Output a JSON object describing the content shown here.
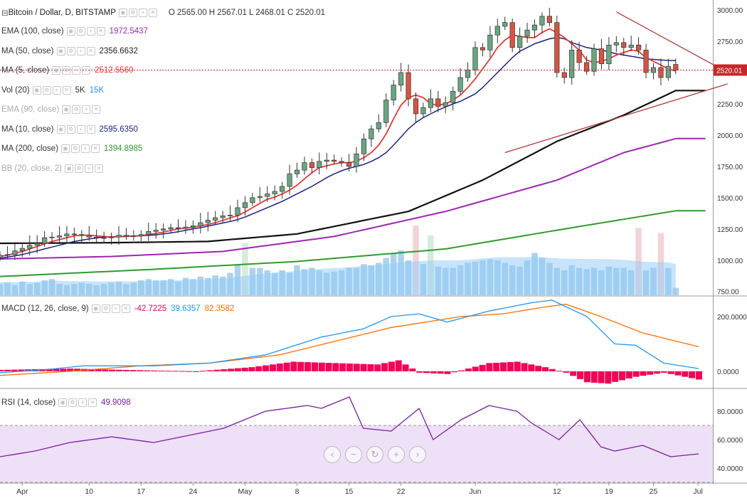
{
  "header": {
    "symbol": "Bitcoin / Dollar, D, BITSTAMP",
    "o_label": "O",
    "o": "2565.00",
    "h_label": "H",
    "h": "2567.01",
    "l_label": "L",
    "l": "2468.01",
    "c_label": "C",
    "c": "2520.01"
  },
  "indicators": [
    {
      "label": "EMA (100, close)",
      "values": [
        "1972.5437"
      ],
      "colors": [
        "#9c27b0"
      ],
      "dim": false
    },
    {
      "label": "MA (50, close)",
      "values": [
        "2356.6632"
      ],
      "colors": [
        "#222222"
      ],
      "dim": false
    },
    {
      "label": "MA (5, close)",
      "values": [
        "2512.5560"
      ],
      "colors": [
        "#e53935"
      ],
      "dim": false
    },
    {
      "label": "Vol (20)",
      "values": [
        "5K",
        "15K"
      ],
      "colors": [
        "#333333",
        "#2196f3"
      ],
      "dim": false
    },
    {
      "label": "EMA (90, close)",
      "values": [],
      "colors": [],
      "dim": true
    },
    {
      "label": "MA (10, close)",
      "values": [
        "2595.6350"
      ],
      "colors": [
        "#1a237e"
      ],
      "dim": false
    },
    {
      "label": "MA (200, close)",
      "values": [
        "1394.8985"
      ],
      "colors": [
        "#2e9b2e"
      ],
      "dim": false
    },
    {
      "label": "BB (20, close, 2)",
      "values": [],
      "colors": [],
      "dim": true
    }
  ],
  "macd_legend": {
    "label": "MACD (12, 26, close, 9)",
    "hist": "-42.7225",
    "macd": "39.6357",
    "signal": "82.3582"
  },
  "rsi_legend": {
    "label": "RSI (14, close)",
    "value": "49.9098"
  },
  "nav_icons": [
    "back-icon",
    "zoom-out-icon",
    "reset-icon",
    "zoom-in-icon",
    "forward-icon"
  ],
  "nav_glyphs": [
    "‹",
    "−",
    "↻",
    "+",
    "›"
  ],
  "colors": {
    "up": "#6ba583",
    "down": "#d75442",
    "ma5": "#e53935",
    "ma10": "#1a237e",
    "ma50": "#111111",
    "ema100": "#9c27b0",
    "ma200": "#2e9b2e",
    "macd": "#2196f3",
    "signal": "#ff6d00",
    "hist": "#f50057",
    "rsi": "#7b1fa2",
    "rsi_band": "#ede0f7",
    "trend": "#b03a3a",
    "price_line": "#c62828"
  },
  "chart_data": [
    {
      "type": "candlestick",
      "title": "Bitcoin / Dollar, D, BITSTAMP",
      "ylim": [
        720,
        3080
      ],
      "y_ticks": [
        "3000.00",
        "2750.00",
        "2500.00",
        "2250.00",
        "2000.00",
        "1750.00",
        "1500.00",
        "1250.00",
        "1000.00",
        "750.00"
      ],
      "x_ticks": [
        {
          "label": "Apr",
          "date": "2017-04-01"
        },
        {
          "label": "10",
          "date": "2017-04-10"
        },
        {
          "label": "17",
          "date": "2017-04-17"
        },
        {
          "label": "24",
          "date": "2017-04-24"
        },
        {
          "label": "May",
          "date": "2017-05-01"
        },
        {
          "label": "8",
          "date": "2017-05-08"
        },
        {
          "label": "15",
          "date": "2017-05-15"
        },
        {
          "label": "22",
          "date": "2017-05-22"
        },
        {
          "label": "Jun",
          "date": "2017-06-01"
        },
        {
          "label": "12",
          "date": "2017-06-12"
        },
        {
          "label": "19",
          "date": "2017-06-19"
        },
        {
          "label": "25",
          "date": "2017-06-25"
        },
        {
          "label": "Jul",
          "date": "2017-07-01"
        }
      ],
      "xlim": [
        "2017-03-29",
        "2017-07-03"
      ],
      "start_date": "2017-03-29",
      "last_price_label": "2520.01",
      "closes": [
        1040,
        1045,
        1075,
        1095,
        1120,
        1135,
        1180,
        1185,
        1195,
        1210,
        1205,
        1200,
        1185,
        1180,
        1180,
        1185,
        1200,
        1190,
        1195,
        1205,
        1230,
        1240,
        1250,
        1260,
        1255,
        1265,
        1275,
        1300,
        1320,
        1340,
        1355,
        1360,
        1420,
        1460,
        1500,
        1510,
        1530,
        1550,
        1590,
        1690,
        1720,
        1780,
        1740,
        1790,
        1800,
        1790,
        1780,
        1750,
        1850,
        1970,
        2050,
        2100,
        2280,
        2400,
        2500,
        2290,
        2170,
        2220,
        2290,
        2230,
        2260,
        2350,
        2460,
        2520,
        2700,
        2680,
        2800,
        2870,
        2900,
        2700,
        2790,
        2840,
        2880,
        2950,
        2900,
        2500,
        2460,
        2680,
        2580,
        2510,
        2690,
        2570,
        2720,
        2740,
        2700,
        2720,
        2680,
        2500,
        2540,
        2460,
        2550,
        2520
      ],
      "opens": [
        1020,
        1040,
        1045,
        1075,
        1095,
        1120,
        1135,
        1180,
        1185,
        1195,
        1210,
        1205,
        1200,
        1185,
        1180,
        1180,
        1185,
        1200,
        1190,
        1195,
        1205,
        1230,
        1240,
        1250,
        1260,
        1255,
        1265,
        1275,
        1300,
        1320,
        1340,
        1355,
        1360,
        1420,
        1460,
        1500,
        1510,
        1530,
        1550,
        1590,
        1690,
        1720,
        1780,
        1740,
        1790,
        1800,
        1790,
        1780,
        1750,
        1850,
        1970,
        2050,
        2100,
        2280,
        2400,
        2500,
        2290,
        2170,
        2220,
        2290,
        2230,
        2260,
        2350,
        2460,
        2520,
        2700,
        2680,
        2800,
        2870,
        2900,
        2700,
        2790,
        2840,
        2880,
        2950,
        2900,
        2500,
        2460,
        2680,
        2580,
        2510,
        2690,
        2570,
        2720,
        2740,
        2700,
        2720,
        2680,
        2500,
        2540,
        2460,
        2565
      ],
      "volumes": [
        9,
        10,
        8,
        11,
        9,
        10,
        12,
        13,
        9,
        8,
        9,
        10,
        9,
        8,
        9,
        10,
        11,
        9,
        10,
        12,
        13,
        12,
        12,
        13,
        11,
        14,
        13,
        15,
        14,
        16,
        15,
        18,
        24,
        20,
        22,
        22,
        20,
        18,
        20,
        18,
        24,
        21,
        22,
        20,
        18,
        19,
        20,
        22,
        22,
        25,
        24,
        26,
        30,
        34,
        36,
        28,
        26,
        25,
        24,
        23,
        22,
        22,
        24,
        26,
        27,
        28,
        29,
        28,
        26,
        24,
        23,
        28,
        34,
        30,
        26,
        22,
        20,
        24,
        22,
        21,
        22,
        20,
        23,
        22,
        22,
        20,
        18,
        20,
        22,
        22,
        22,
        6
      ],
      "spike_volumes": [
        {
          "i": 33,
          "v": 22
        },
        {
          "i": 56,
          "v": 36
        },
        {
          "i": 58,
          "v": 28
        },
        {
          "i": 86,
          "v": 34
        },
        {
          "i": 89,
          "v": 30
        }
      ],
      "ma5": [
        1030,
        1040,
        1055,
        1070,
        1090,
        1110,
        1130,
        1150,
        1165,
        1180,
        1195,
        1200,
        1200,
        1195,
        1190,
        1185,
        1188,
        1190,
        1192,
        1196,
        1205,
        1215,
        1225,
        1238,
        1250,
        1257,
        1263,
        1275,
        1285,
        1300,
        1318,
        1338,
        1355,
        1385,
        1420,
        1455,
        1487,
        1505,
        1530,
        1560,
        1600,
        1650,
        1700,
        1740,
        1755,
        1770,
        1780,
        1780,
        1790,
        1820,
        1860,
        1920,
        2010,
        2130,
        2240,
        2300,
        2320,
        2300,
        2250,
        2240,
        2250,
        2280,
        2320,
        2380,
        2450,
        2530,
        2610,
        2700,
        2760,
        2800,
        2790,
        2780,
        2780,
        2820,
        2850,
        2820,
        2780,
        2730,
        2680,
        2600,
        2580,
        2590,
        2610,
        2640,
        2660,
        2680,
        2670,
        2620,
        2590,
        2560,
        2530,
        2512
      ],
      "ma10": [
        1015,
        1025,
        1035,
        1045,
        1060,
        1075,
        1090,
        1105,
        1120,
        1135,
        1150,
        1160,
        1170,
        1178,
        1185,
        1188,
        1190,
        1192,
        1193,
        1195,
        1198,
        1203,
        1210,
        1218,
        1228,
        1240,
        1250,
        1260,
        1272,
        1285,
        1297,
        1310,
        1325,
        1345,
        1370,
        1395,
        1420,
        1445,
        1470,
        1500,
        1530,
        1560,
        1590,
        1625,
        1660,
        1690,
        1715,
        1735,
        1750,
        1765,
        1790,
        1820,
        1860,
        1920,
        1985,
        2050,
        2100,
        2140,
        2170,
        2200,
        2225,
        2250,
        2270,
        2300,
        2330,
        2380,
        2440,
        2500,
        2560,
        2620,
        2670,
        2700,
        2730,
        2750,
        2770,
        2780,
        2770,
        2740,
        2720,
        2700,
        2690,
        2680,
        2665,
        2650,
        2640,
        2630,
        2620,
        2610,
        2605,
        2600,
        2597,
        2595
      ],
      "ma50_anchors": [
        [
          0,
          1135
        ],
        [
          15,
          1140
        ],
        [
          28,
          1150
        ],
        [
          40,
          1210
        ],
        [
          55,
          1390
        ],
        [
          65,
          1640
        ],
        [
          75,
          1950
        ],
        [
          84,
          2160
        ],
        [
          91,
          2356
        ]
      ],
      "ema100_anchors": [
        [
          0,
          1010
        ],
        [
          15,
          1030
        ],
        [
          30,
          1070
        ],
        [
          45,
          1190
        ],
        [
          60,
          1390
        ],
        [
          75,
          1640
        ],
        [
          84,
          1860
        ],
        [
          91,
          1972
        ]
      ],
      "ma200_anchors": [
        [
          0,
          870
        ],
        [
          20,
          925
        ],
        [
          40,
          990
        ],
        [
          60,
          1090
        ],
        [
          75,
          1240
        ],
        [
          91,
          1395
        ]
      ],
      "trendlines": [
        {
          "from": [
            68,
            1860
          ],
          "to": [
            98,
            2410
          ]
        },
        {
          "from": [
            83,
            2985
          ],
          "to": [
            98,
            2500
          ]
        }
      ]
    },
    {
      "type": "macd",
      "title": "MACD (12, 26, close, 9)",
      "ylim": [
        -60,
        270
      ],
      "y_ticks": [
        "200.0000",
        "0.0000"
      ],
      "macd_anchors": [
        [
          0,
          -5
        ],
        [
          6,
          5
        ],
        [
          12,
          20
        ],
        [
          22,
          20
        ],
        [
          30,
          30
        ],
        [
          38,
          60
        ],
        [
          46,
          125
        ],
        [
          52,
          155
        ],
        [
          56,
          200
        ],
        [
          60,
          210
        ],
        [
          64,
          180
        ],
        [
          70,
          220
        ],
        [
          76,
          250
        ],
        [
          79,
          260
        ],
        [
          84,
          200
        ],
        [
          88,
          100
        ],
        [
          91,
          95
        ],
        [
          95,
          30
        ],
        [
          100,
          10
        ]
      ],
      "signal_anchors": [
        [
          0,
          -15
        ],
        [
          10,
          0
        ],
        [
          20,
          20
        ],
        [
          30,
          30
        ],
        [
          40,
          60
        ],
        [
          48,
          110
        ],
        [
          56,
          160
        ],
        [
          66,
          200
        ],
        [
          72,
          210
        ],
        [
          78,
          235
        ],
        [
          81,
          245
        ],
        [
          86,
          200
        ],
        [
          92,
          140
        ],
        [
          100,
          90
        ]
      ],
      "hist_anchors": [
        [
          0,
          5
        ],
        [
          10,
          10
        ],
        [
          18,
          5
        ],
        [
          28,
          0
        ],
        [
          36,
          15
        ],
        [
          42,
          35
        ],
        [
          48,
          30
        ],
        [
          54,
          25
        ],
        [
          57,
          40
        ],
        [
          60,
          -5
        ],
        [
          64,
          -10
        ],
        [
          70,
          30
        ],
        [
          74,
          35
        ],
        [
          78,
          15
        ],
        [
          81,
          -5
        ],
        [
          84,
          -40
        ],
        [
          87,
          -45
        ],
        [
          91,
          -20
        ],
        [
          95,
          -5
        ],
        [
          100,
          -30
        ]
      ]
    },
    {
      "type": "rsi",
      "title": "RSI (14, close)",
      "ylim": [
        30,
        95
      ],
      "band": [
        30,
        70
      ],
      "y_ticks": [
        "80.0000",
        "60.0000",
        "40.0000"
      ],
      "rsi_anchors": [
        [
          0,
          48
        ],
        [
          5,
          52
        ],
        [
          10,
          58
        ],
        [
          16,
          62
        ],
        [
          22,
          58
        ],
        [
          28,
          64
        ],
        [
          32,
          68
        ],
        [
          38,
          80
        ],
        [
          44,
          84
        ],
        [
          46,
          82
        ],
        [
          50,
          90
        ],
        [
          52,
          68
        ],
        [
          56,
          66
        ],
        [
          60,
          82
        ],
        [
          62,
          60
        ],
        [
          66,
          74
        ],
        [
          70,
          84
        ],
        [
          74,
          80
        ],
        [
          76,
          72
        ],
        [
          80,
          60
        ],
        [
          83,
          74
        ],
        [
          86,
          55
        ],
        [
          88,
          52
        ],
        [
          92,
          56
        ],
        [
          96,
          48
        ],
        [
          100,
          50
        ]
      ]
    }
  ]
}
